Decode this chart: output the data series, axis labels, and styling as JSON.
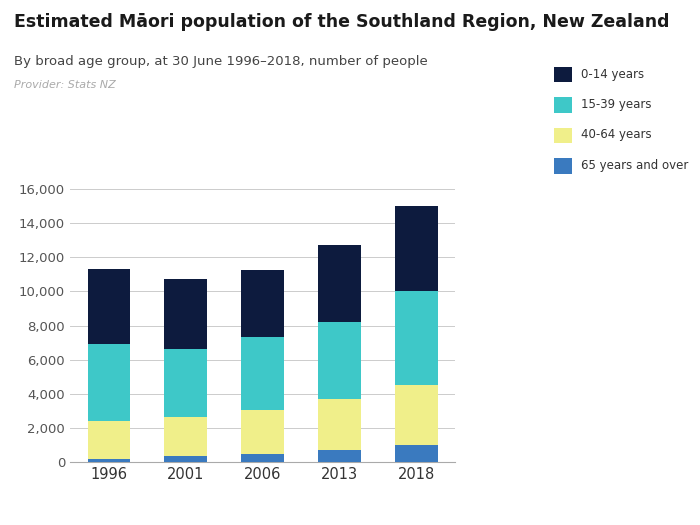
{
  "years": [
    "1996",
    "2001",
    "2006",
    "2013",
    "2018"
  ],
  "age_groups": [
    "65 years and over",
    "40-64 years",
    "15-39 years",
    "0-14 years"
  ],
  "values": {
    "65 years and over": [
      200,
      350,
      450,
      700,
      1000
    ],
    "40-64 years": [
      2200,
      2300,
      2600,
      3000,
      3500
    ],
    "15-39 years": [
      4500,
      4000,
      4300,
      4500,
      5500
    ],
    "0-14 years": [
      4400,
      4100,
      3900,
      4500,
      5000
    ]
  },
  "colors": {
    "65 years and over": "#3a7abf",
    "40-64 years": "#f0ef8a",
    "15-39 years": "#3ec8c8",
    "0-14 years": "#0d1b3e"
  },
  "title": "Estimated Māori population of the Southland Region, New Zealand",
  "subtitle": "By broad age group, at 30 June 1996–2018, number of people",
  "provider": "Provider: Stats NZ",
  "ylim": [
    0,
    16000
  ],
  "yticks": [
    0,
    2000,
    4000,
    6000,
    8000,
    10000,
    12000,
    14000,
    16000
  ],
  "background_color": "#ffffff",
  "grid_color": "#cccccc",
  "logo_bg_color": "#5b5ea6",
  "bar_width": 0.55,
  "legend_order": [
    "0-14 years",
    "15-39 years",
    "40-64 years",
    "65 years and over"
  ]
}
